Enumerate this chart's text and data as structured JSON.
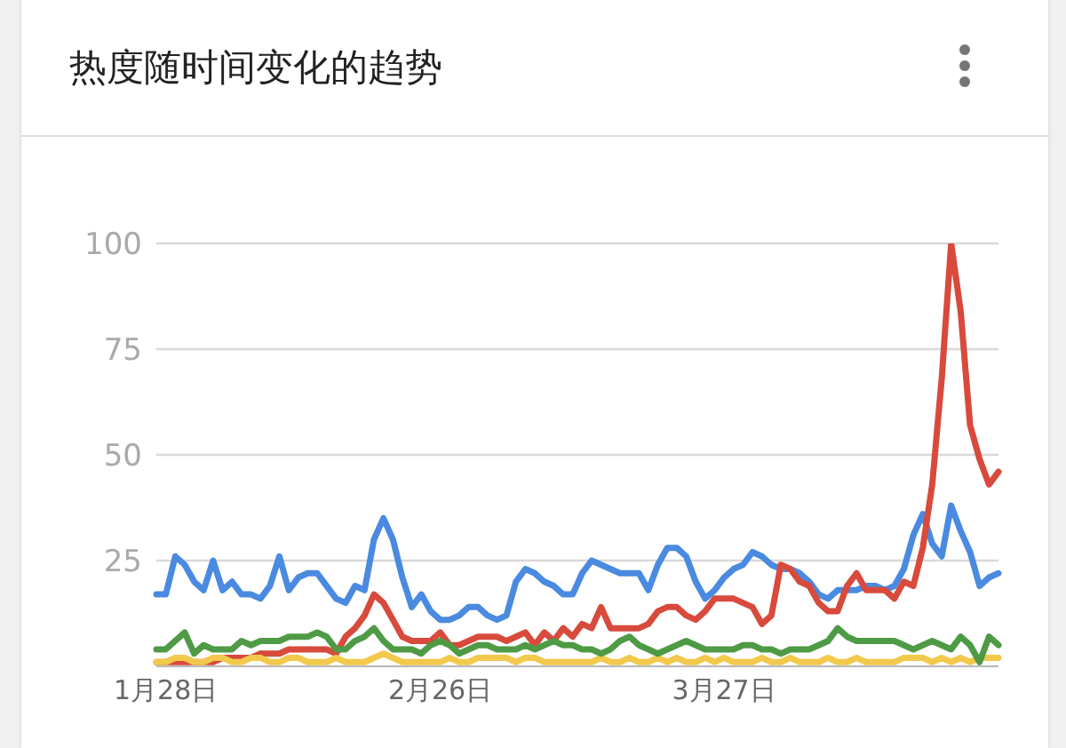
{
  "chart_data": {
    "type": "line",
    "title": "热度随时间变化的趋势",
    "categories": [
      null,
      "1月28日",
      null,
      null,
      null,
      null,
      null,
      null,
      null,
      null,
      null,
      null,
      null,
      null,
      null,
      null,
      null,
      null,
      null,
      null,
      null,
      null,
      null,
      null,
      null,
      null,
      null,
      null,
      null,
      null,
      "2月26日",
      null,
      null,
      null,
      null,
      null,
      null,
      null,
      null,
      null,
      null,
      null,
      null,
      null,
      null,
      null,
      null,
      null,
      null,
      null,
      null,
      null,
      null,
      null,
      null,
      null,
      null,
      null,
      null,
      null,
      "3月27日",
      null,
      null,
      null,
      null,
      null,
      null,
      null,
      null,
      null,
      null,
      null,
      null,
      null,
      null,
      null,
      null,
      null,
      null,
      null,
      null,
      null,
      null,
      null,
      null,
      null,
      null,
      null,
      null,
      null
    ],
    "series": [
      {
        "color": "#4a8ae0",
        "values": [
          17,
          17,
          26,
          24,
          20,
          18,
          25,
          18,
          20,
          17,
          17,
          16,
          19,
          26,
          18,
          21,
          22,
          22,
          19,
          16,
          15,
          19,
          18,
          30,
          35,
          30,
          21,
          14,
          17,
          13,
          11,
          11,
          12,
          14,
          14,
          12,
          11,
          12,
          20,
          23,
          22,
          20,
          19,
          17,
          17,
          22,
          25,
          24,
          23,
          22,
          22,
          22,
          18,
          24,
          28,
          28,
          26,
          20,
          16,
          18,
          21,
          23,
          24,
          27,
          26,
          24,
          23,
          23,
          22,
          20,
          17,
          16,
          18,
          18,
          18,
          19,
          19,
          18,
          19,
          23,
          31,
          36,
          29,
          26,
          38,
          32,
          27,
          19,
          21,
          22
        ]
      },
      {
        "color": "#d84a3c",
        "values": [
          1,
          1,
          1,
          1,
          1,
          1,
          1,
          2,
          2,
          2,
          2,
          3,
          3,
          3,
          4,
          4,
          4,
          4,
          4,
          3,
          7,
          9,
          12,
          17,
          15,
          11,
          7,
          6,
          6,
          6,
          8,
          5,
          5,
          6,
          7,
          7,
          7,
          6,
          7,
          8,
          5,
          8,
          6,
          9,
          7,
          10,
          9,
          14,
          9,
          9,
          9,
          9,
          10,
          13,
          14,
          14,
          12,
          11,
          13,
          16,
          16,
          16,
          15,
          14,
          10,
          12,
          24,
          23,
          20,
          19,
          15,
          13,
          13,
          19,
          22,
          18,
          18,
          18,
          16,
          20,
          19,
          28,
          43,
          68,
          100,
          84,
          57,
          49,
          43,
          46
        ]
      },
      {
        "color": "#f2c94c",
        "values": [
          1,
          1,
          2,
          2,
          1,
          1,
          2,
          2,
          1,
          1,
          2,
          2,
          1,
          1,
          2,
          2,
          1,
          1,
          1,
          2,
          1,
          1,
          1,
          2,
          3,
          2,
          1,
          1,
          1,
          1,
          1,
          2,
          1,
          1,
          2,
          2,
          2,
          2,
          1,
          2,
          2,
          1,
          1,
          1,
          1,
          1,
          1,
          2,
          1,
          1,
          2,
          1,
          1,
          2,
          1,
          2,
          1,
          1,
          2,
          1,
          2,
          1,
          1,
          1,
          2,
          1,
          1,
          2,
          1,
          1,
          1,
          2,
          1,
          1,
          2,
          1,
          1,
          1,
          1,
          2,
          2,
          2,
          1,
          2,
          1,
          2,
          1,
          2,
          2,
          2
        ]
      },
      {
        "color": "#4f9a45",
        "values": [
          4,
          4,
          6,
          8,
          3,
          5,
          4,
          4,
          4,
          6,
          5,
          6,
          6,
          6,
          7,
          7,
          7,
          8,
          7,
          4,
          4,
          6,
          7,
          9,
          6,
          4,
          4,
          4,
          3,
          5,
          6,
          5,
          3,
          4,
          5,
          5,
          4,
          4,
          4,
          5,
          4,
          5,
          6,
          5,
          5,
          4,
          4,
          3,
          4,
          6,
          7,
          5,
          4,
          3,
          4,
          5,
          6,
          5,
          4,
          4,
          4,
          4,
          5,
          5,
          4,
          4,
          3,
          4,
          4,
          4,
          5,
          6,
          9,
          7,
          6,
          6,
          6,
          6,
          6,
          5,
          4,
          5,
          6,
          5,
          4,
          7,
          5,
          1,
          7,
          5
        ]
      }
    ],
    "ylim": [
      0,
      100
    ],
    "yticks": [
      {
        "value": 0,
        "label": null
      },
      25,
      50,
      75,
      100
    ],
    "grid": "y",
    "legend": false,
    "marker": "none",
    "line_style": "solid"
  }
}
